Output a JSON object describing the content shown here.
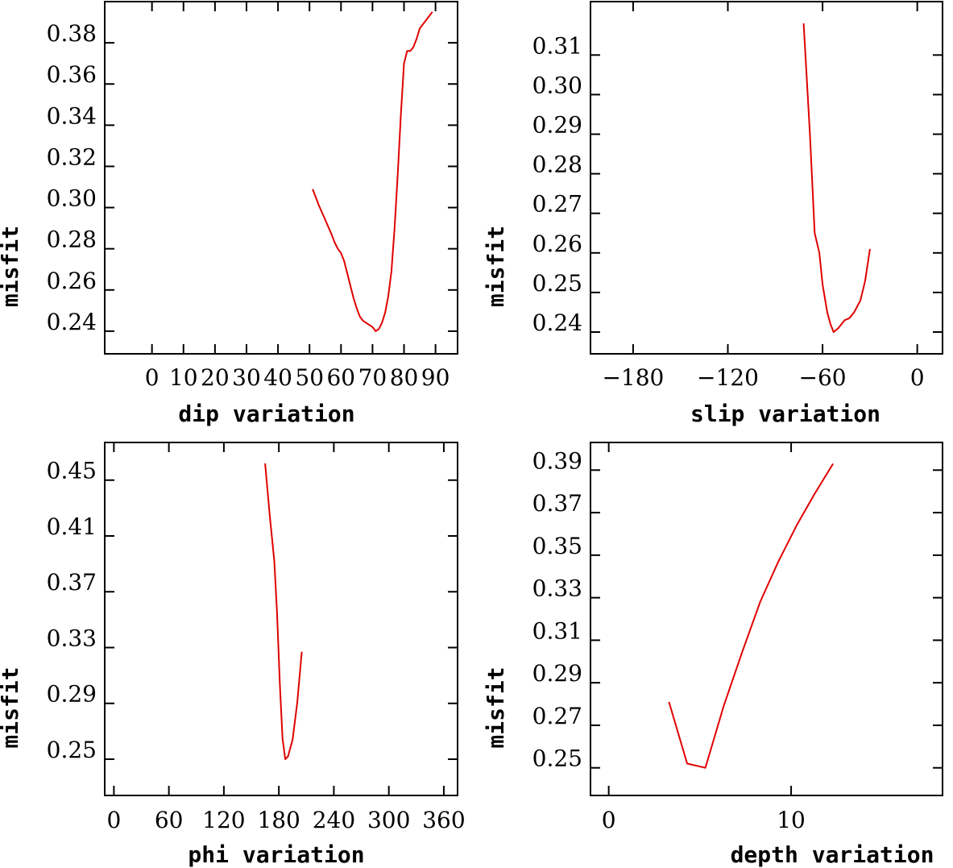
{
  "chart_data": [
    {
      "type": "line",
      "xlabel": "dip    variation",
      "ylabel": "misfit",
      "xlim": [
        -15,
        97
      ],
      "ylim": [
        0.229,
        0.4
      ],
      "xticks": [
        0,
        10,
        20,
        30,
        40,
        50,
        60,
        70,
        80,
        90
      ],
      "yticks": [
        0.24,
        0.26,
        0.28,
        0.3,
        0.32,
        0.34,
        0.36,
        0.38
      ],
      "ytick_labels": [
        "0.24",
        "0.26",
        "0.28",
        "0.30",
        "0.32",
        "0.34",
        "0.36",
        "0.38"
      ],
      "series": [
        {
          "color": "#e00000",
          "x": [
            51,
            53,
            55,
            57,
            58,
            59,
            60,
            61,
            62,
            63,
            64,
            65,
            66,
            67,
            68,
            69,
            70,
            71,
            72,
            73,
            74,
            75,
            76,
            77,
            78,
            79,
            80,
            81,
            82,
            83,
            84,
            85,
            86,
            87,
            88,
            89
          ],
          "y": [
            0.309,
            0.301,
            0.294,
            0.287,
            0.283,
            0.28,
            0.278,
            0.274,
            0.268,
            0.262,
            0.256,
            0.251,
            0.247,
            0.245,
            0.244,
            0.243,
            0.242,
            0.24,
            0.241,
            0.244,
            0.249,
            0.257,
            0.269,
            0.29,
            0.316,
            0.345,
            0.37,
            0.376,
            0.376,
            0.378,
            0.382,
            0.387,
            0.389,
            0.391,
            0.393,
            0.395
          ]
        }
      ]
    },
    {
      "type": "line",
      "xlabel": "slip   variation",
      "ylabel": "misfit",
      "xlim": [
        -207,
        16
      ],
      "ylim": [
        0.2345,
        0.3235
      ],
      "xticks": [
        -180,
        -120,
        -60,
        0
      ],
      "xtick_labels": [
        "−180",
        "−120",
        "−60",
        "0"
      ],
      "yticks": [
        0.24,
        0.25,
        0.26,
        0.27,
        0.28,
        0.29,
        0.3,
        0.31
      ],
      "ytick_labels": [
        "0.24",
        "0.25",
        "0.26",
        "0.27",
        "0.28",
        "0.29",
        "0.30",
        "0.31"
      ],
      "series": [
        {
          "color": "#e00000",
          "x": [
            -72,
            -68,
            -65,
            -62,
            -60,
            -57,
            -55,
            -53,
            -50,
            -46,
            -43,
            -40,
            -36,
            -33,
            -30
          ],
          "y": [
            0.318,
            0.29,
            0.265,
            0.26,
            0.252,
            0.245,
            0.242,
            0.24,
            0.241,
            0.243,
            0.2435,
            0.245,
            0.248,
            0.253,
            0.261
          ]
        }
      ]
    },
    {
      "type": "line",
      "xlabel": "phi     variation",
      "ylabel": "misfit",
      "xlim": [
        -10,
        375
      ],
      "ylim": [
        0.224,
        0.477
      ],
      "xticks": [
        0,
        60,
        120,
        180,
        240,
        300,
        360
      ],
      "yticks": [
        0.25,
        0.29,
        0.33,
        0.37,
        0.41,
        0.45
      ],
      "ytick_labels": [
        "0.25",
        "0.29",
        "0.33",
        "0.37",
        "0.41",
        "0.45"
      ],
      "series": [
        {
          "color": "#e00000",
          "x": [
            165,
            170,
            175,
            178,
            181,
            184,
            187,
            190,
            195,
            200,
            205
          ],
          "y": [
            0.462,
            0.425,
            0.392,
            0.355,
            0.305,
            0.265,
            0.25,
            0.252,
            0.264,
            0.29,
            0.327
          ]
        }
      ]
    },
    {
      "type": "line",
      "xlabel": "depth  variation",
      "ylabel": "misfit",
      "xlim": [
        -1,
        18.3
      ],
      "ylim": [
        0.237,
        0.403
      ],
      "xticks": [
        0,
        10
      ],
      "yticks": [
        0.25,
        0.27,
        0.29,
        0.31,
        0.33,
        0.35,
        0.37,
        0.39
      ],
      "ytick_labels": [
        "0.25",
        "0.27",
        "0.29",
        "0.31",
        "0.33",
        "0.35",
        "0.37",
        "0.39"
      ],
      "series": [
        {
          "color": "#e00000",
          "x": [
            3.3,
            4.3,
            5.3,
            6.3,
            7.3,
            8.3,
            9.3,
            10.3,
            11.3,
            12.3
          ],
          "y": [
            0.281,
            0.252,
            0.25,
            0.279,
            0.304,
            0.328,
            0.347,
            0.364,
            0.379,
            0.393
          ]
        }
      ]
    }
  ]
}
